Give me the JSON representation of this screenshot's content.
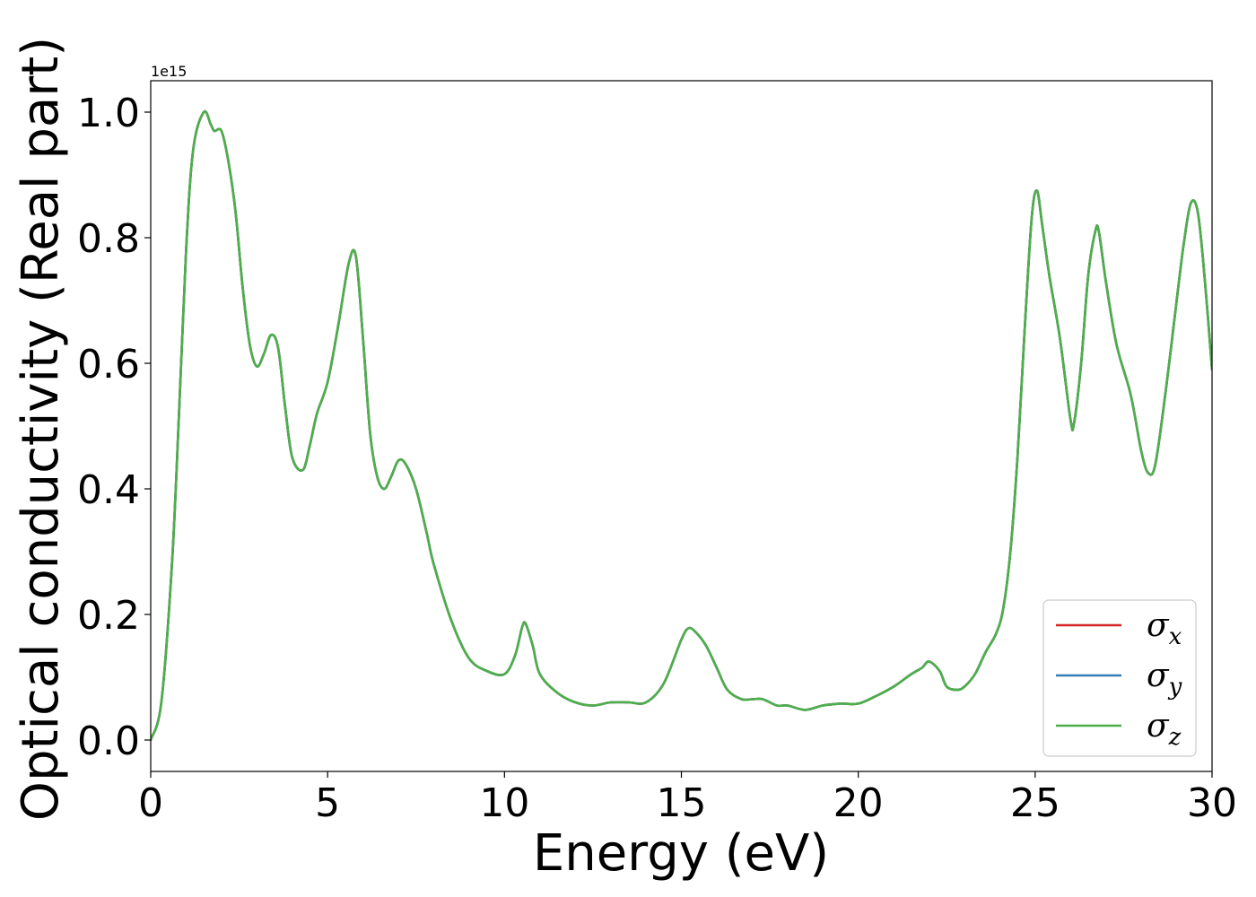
{
  "chart_data": {
    "type": "line",
    "title": "",
    "xlabel": "Energy (eV)",
    "ylabel": "Optical conductivity (Real part)",
    "y_offset_text": "1e15",
    "xlim": [
      0,
      30
    ],
    "ylim": [
      -0.05,
      1.05
    ],
    "y_scale_factor": 1000000000000000.0,
    "xticks": [
      0,
      5,
      10,
      15,
      20,
      25,
      30
    ],
    "xtick_labels": [
      "0",
      "5",
      "10",
      "15",
      "20",
      "25",
      "30"
    ],
    "yticks": [
      0.0,
      0.2,
      0.4,
      0.6,
      0.8,
      1.0
    ],
    "ytick_labels": [
      "0.0",
      "0.2",
      "0.4",
      "0.6",
      "0.8",
      "1.0"
    ],
    "grid": false,
    "legend_position": "lower-right",
    "x": [
      0,
      0.3,
      0.6,
      0.8,
      1.0,
      1.2,
      1.5,
      1.7,
      1.8,
      2.0,
      2.2,
      2.4,
      2.6,
      2.8,
      3.0,
      3.2,
      3.4,
      3.6,
      3.8,
      4.0,
      4.3,
      4.5,
      4.7,
      5.0,
      5.3,
      5.6,
      5.8,
      6.0,
      6.2,
      6.4,
      6.6,
      6.8,
      7.0,
      7.2,
      7.5,
      7.8,
      8.0,
      8.5,
      9.0,
      9.5,
      10.0,
      10.3,
      10.5,
      10.6,
      10.8,
      11.0,
      11.5,
      12.0,
      12.5,
      13.0,
      13.5,
      14.0,
      14.5,
      15.0,
      15.2,
      15.4,
      15.7,
      16.0,
      16.3,
      16.7,
      17.0,
      17.3,
      17.7,
      18.0,
      18.5,
      19.0,
      19.5,
      20.0,
      20.5,
      21.0,
      21.5,
      21.8,
      22.0,
      22.3,
      22.5,
      22.8,
      23.0,
      23.3,
      23.6,
      23.9,
      24.1,
      24.3,
      24.5,
      24.7,
      24.9,
      25.05,
      25.2,
      25.4,
      25.7,
      26.0,
      26.1,
      26.3,
      26.5,
      26.7,
      26.8,
      27.0,
      27.3,
      27.7,
      28.0,
      28.2,
      28.4,
      28.7,
      29.0,
      29.2,
      29.4,
      29.6,
      29.8,
      30.0
    ],
    "series": [
      {
        "name": "σx",
        "label_main": "σ",
        "label_sub": "x",
        "color": "#d62728",
        "values": [
          0.0,
          0.06,
          0.28,
          0.52,
          0.78,
          0.94,
          1.0,
          0.98,
          0.97,
          0.97,
          0.92,
          0.84,
          0.72,
          0.63,
          0.595,
          0.615,
          0.645,
          0.625,
          0.53,
          0.45,
          0.43,
          0.47,
          0.52,
          0.57,
          0.66,
          0.76,
          0.77,
          0.64,
          0.49,
          0.42,
          0.4,
          0.42,
          0.445,
          0.44,
          0.4,
          0.33,
          0.28,
          0.19,
          0.13,
          0.11,
          0.105,
          0.135,
          0.18,
          0.185,
          0.15,
          0.105,
          0.075,
          0.06,
          0.055,
          0.06,
          0.06,
          0.06,
          0.09,
          0.16,
          0.178,
          0.172,
          0.15,
          0.115,
          0.08,
          0.065,
          0.065,
          0.065,
          0.055,
          0.055,
          0.048,
          0.055,
          0.058,
          0.058,
          0.07,
          0.085,
          0.105,
          0.115,
          0.125,
          0.11,
          0.085,
          0.08,
          0.085,
          0.105,
          0.14,
          0.17,
          0.21,
          0.3,
          0.45,
          0.65,
          0.83,
          0.875,
          0.82,
          0.74,
          0.64,
          0.51,
          0.505,
          0.6,
          0.74,
          0.81,
          0.81,
          0.73,
          0.63,
          0.55,
          0.46,
          0.425,
          0.44,
          0.56,
          0.7,
          0.79,
          0.855,
          0.84,
          0.73,
          0.59
        ]
      },
      {
        "name": "σy",
        "label_main": "σ",
        "label_sub": "y",
        "color": "#377eb8",
        "values": [
          0.0,
          0.06,
          0.28,
          0.52,
          0.78,
          0.94,
          1.0,
          0.98,
          0.97,
          0.97,
          0.92,
          0.84,
          0.72,
          0.63,
          0.595,
          0.615,
          0.645,
          0.625,
          0.53,
          0.45,
          0.43,
          0.47,
          0.52,
          0.57,
          0.66,
          0.76,
          0.77,
          0.64,
          0.49,
          0.42,
          0.4,
          0.42,
          0.445,
          0.44,
          0.4,
          0.33,
          0.28,
          0.19,
          0.13,
          0.11,
          0.105,
          0.135,
          0.18,
          0.185,
          0.15,
          0.105,
          0.075,
          0.06,
          0.055,
          0.06,
          0.06,
          0.06,
          0.09,
          0.16,
          0.178,
          0.172,
          0.15,
          0.115,
          0.08,
          0.065,
          0.065,
          0.065,
          0.055,
          0.055,
          0.048,
          0.055,
          0.058,
          0.058,
          0.07,
          0.085,
          0.105,
          0.115,
          0.125,
          0.11,
          0.085,
          0.08,
          0.085,
          0.105,
          0.14,
          0.17,
          0.21,
          0.3,
          0.45,
          0.65,
          0.83,
          0.875,
          0.82,
          0.74,
          0.64,
          0.51,
          0.505,
          0.6,
          0.74,
          0.81,
          0.81,
          0.73,
          0.63,
          0.55,
          0.46,
          0.425,
          0.44,
          0.56,
          0.7,
          0.79,
          0.855,
          0.84,
          0.73,
          0.59
        ]
      },
      {
        "name": "σz",
        "label_main": "σ",
        "label_sub": "z",
        "color": "#4daf4a",
        "values": [
          0.0,
          0.06,
          0.28,
          0.52,
          0.78,
          0.94,
          1.0,
          0.98,
          0.97,
          0.97,
          0.92,
          0.84,
          0.72,
          0.63,
          0.595,
          0.615,
          0.645,
          0.625,
          0.53,
          0.45,
          0.43,
          0.47,
          0.52,
          0.57,
          0.66,
          0.76,
          0.77,
          0.64,
          0.49,
          0.42,
          0.4,
          0.42,
          0.445,
          0.44,
          0.4,
          0.33,
          0.28,
          0.19,
          0.13,
          0.11,
          0.105,
          0.135,
          0.18,
          0.185,
          0.15,
          0.105,
          0.075,
          0.06,
          0.055,
          0.06,
          0.06,
          0.06,
          0.09,
          0.16,
          0.178,
          0.172,
          0.15,
          0.115,
          0.08,
          0.065,
          0.065,
          0.065,
          0.055,
          0.055,
          0.048,
          0.055,
          0.058,
          0.058,
          0.07,
          0.085,
          0.105,
          0.115,
          0.125,
          0.11,
          0.085,
          0.08,
          0.085,
          0.105,
          0.14,
          0.17,
          0.21,
          0.3,
          0.45,
          0.65,
          0.83,
          0.875,
          0.82,
          0.74,
          0.64,
          0.51,
          0.505,
          0.6,
          0.74,
          0.81,
          0.81,
          0.73,
          0.63,
          0.55,
          0.46,
          0.425,
          0.44,
          0.56,
          0.7,
          0.79,
          0.855,
          0.84,
          0.73,
          0.59
        ]
      }
    ]
  }
}
